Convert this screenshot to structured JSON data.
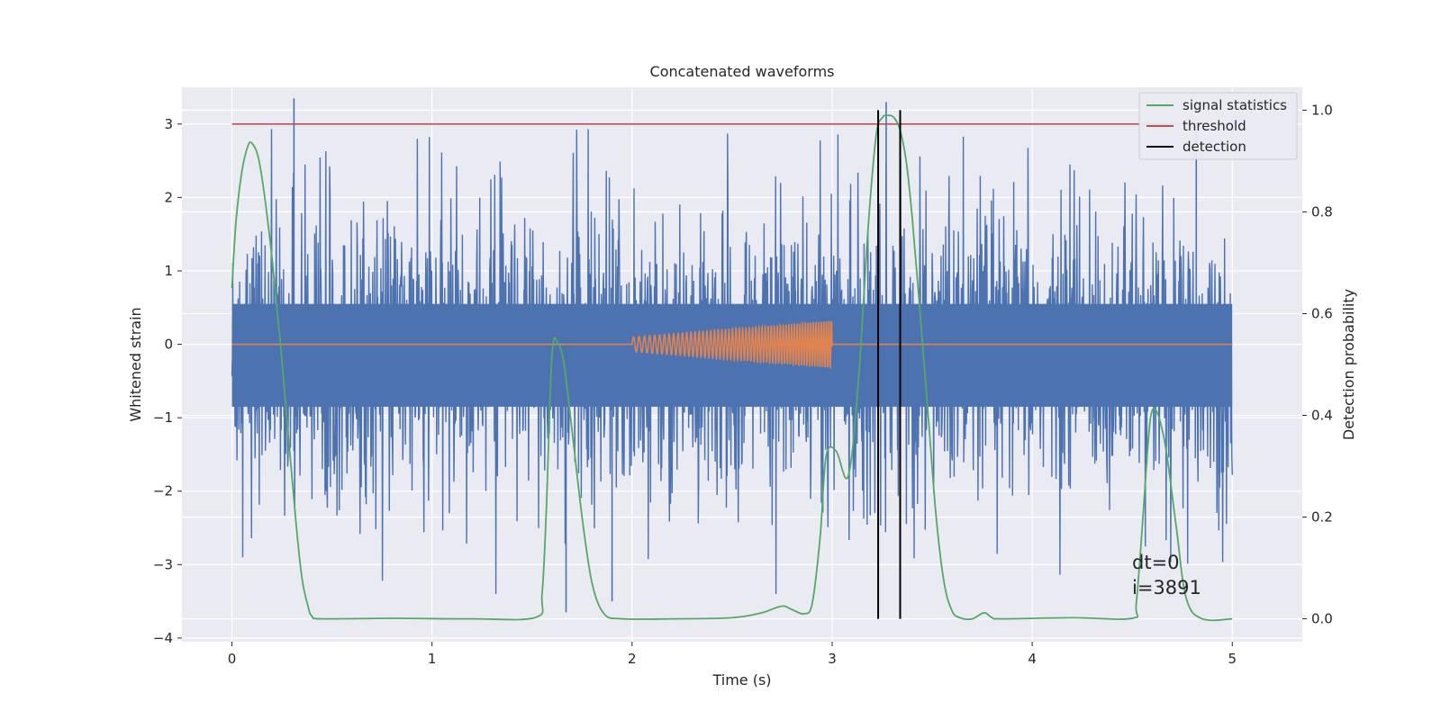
{
  "chart_data": {
    "type": "line",
    "title": "Concatenated waveforms",
    "xlabel": "Time (s)",
    "ylabel": "Whitened strain",
    "ylabel_right": "Detection probability",
    "xlim": [
      -0.25,
      5.35
    ],
    "ylim": [
      -4.05,
      3.5
    ],
    "ylim_right": [
      -0.045,
      1.045
    ],
    "xticks": [
      "0",
      "1",
      "2",
      "3",
      "4",
      "5"
    ],
    "xtick_values": [
      0,
      1,
      2,
      3,
      4,
      5
    ],
    "yticks": [
      "−4",
      "−3",
      "−2",
      "−1",
      "0",
      "1",
      "2",
      "3"
    ],
    "ytick_values": [
      -4,
      -3,
      -2,
      -1,
      0,
      1,
      2,
      3
    ],
    "yticks_right": [
      "0.0",
      "0.2",
      "0.4",
      "0.6",
      "0.8",
      "1.0"
    ],
    "ytick_values_right": [
      0,
      0.2,
      0.4,
      0.6,
      0.8,
      1.0
    ],
    "grid": true,
    "legend_position": "top-right",
    "legend": [
      {
        "label": "signal statistics",
        "color": "#55a868"
      },
      {
        "label": "threshold",
        "color": "#c44e52"
      },
      {
        "label": "detection",
        "color": "#000000"
      }
    ],
    "series": [
      {
        "kind": "noise",
        "color": "#4c72b0",
        "x_range": [
          0,
          5
        ],
        "typical_range": [
          -0.85,
          0.55
        ],
        "upper_extremes": [
          3.35,
          3.3,
          2.9
        ],
        "lower_extremes": [
          -3.65,
          -3.5
        ]
      },
      {
        "kind": "chirp",
        "color": "#dd8452",
        "x_range": [
          0,
          5
        ],
        "chirp_x_range": [
          2,
          3
        ],
        "amplitude_range": [
          0.1,
          0.32
        ],
        "frequency_hz_range": [
          35,
          80
        ]
      },
      {
        "name": "signal statistics",
        "color": "#55a868",
        "axis": "right",
        "x": [
          0,
          0.02,
          0.05,
          0.08,
          0.1,
          0.13,
          0.16,
          0.2,
          0.24,
          0.28,
          0.32,
          0.35,
          0.38,
          0.4,
          0.45,
          0.8,
          1.2,
          1.52,
          1.55,
          1.57,
          1.6,
          1.63,
          1.66,
          1.7,
          1.75,
          1.8,
          1.86,
          1.95,
          2.2,
          2.5,
          2.65,
          2.72,
          2.76,
          2.8,
          2.86,
          2.9,
          2.94,
          2.97,
          3.02,
          3.08,
          3.13,
          3.18,
          3.22,
          3.25,
          3.28,
          3.31,
          3.34,
          3.37,
          3.4,
          3.44,
          3.48,
          3.52,
          3.56,
          3.6,
          3.64,
          3.7,
          3.76,
          3.8,
          3.85,
          4.2,
          4.5,
          4.52,
          4.55,
          4.58,
          4.6,
          4.63,
          4.67,
          4.72,
          4.77,
          4.85,
          5.0
        ],
        "y": [
          0.65,
          0.78,
          0.88,
          0.93,
          0.935,
          0.91,
          0.84,
          0.71,
          0.55,
          0.37,
          0.19,
          0.08,
          0.025,
          0.005,
          0.0,
          0.001,
          0.0,
          0.003,
          0.05,
          0.2,
          0.52,
          0.54,
          0.5,
          0.37,
          0.2,
          0.07,
          0.01,
          0.0,
          0.0,
          0.002,
          0.012,
          0.022,
          0.025,
          0.018,
          0.01,
          0.03,
          0.16,
          0.32,
          0.33,
          0.28,
          0.46,
          0.77,
          0.95,
          0.985,
          0.99,
          0.985,
          0.96,
          0.9,
          0.79,
          0.6,
          0.4,
          0.2,
          0.07,
          0.015,
          0.002,
          0.0,
          0.012,
          0.002,
          0.0,
          0.002,
          0.001,
          0.03,
          0.18,
          0.35,
          0.41,
          0.4,
          0.33,
          0.18,
          0.04,
          0.0,
          0.0
        ]
      },
      {
        "name": "threshold",
        "color": "#c44e52",
        "x": [
          0,
          5
        ],
        "y": [
          3.0,
          3.0
        ]
      },
      {
        "name": "detection",
        "color": "#000000",
        "kind": "vertical_lines",
        "x": [
          3.23,
          3.34
        ],
        "y_range_right": [
          0,
          1.0
        ]
      }
    ],
    "annotations": [
      "dt=0",
      "i=3891"
    ]
  }
}
